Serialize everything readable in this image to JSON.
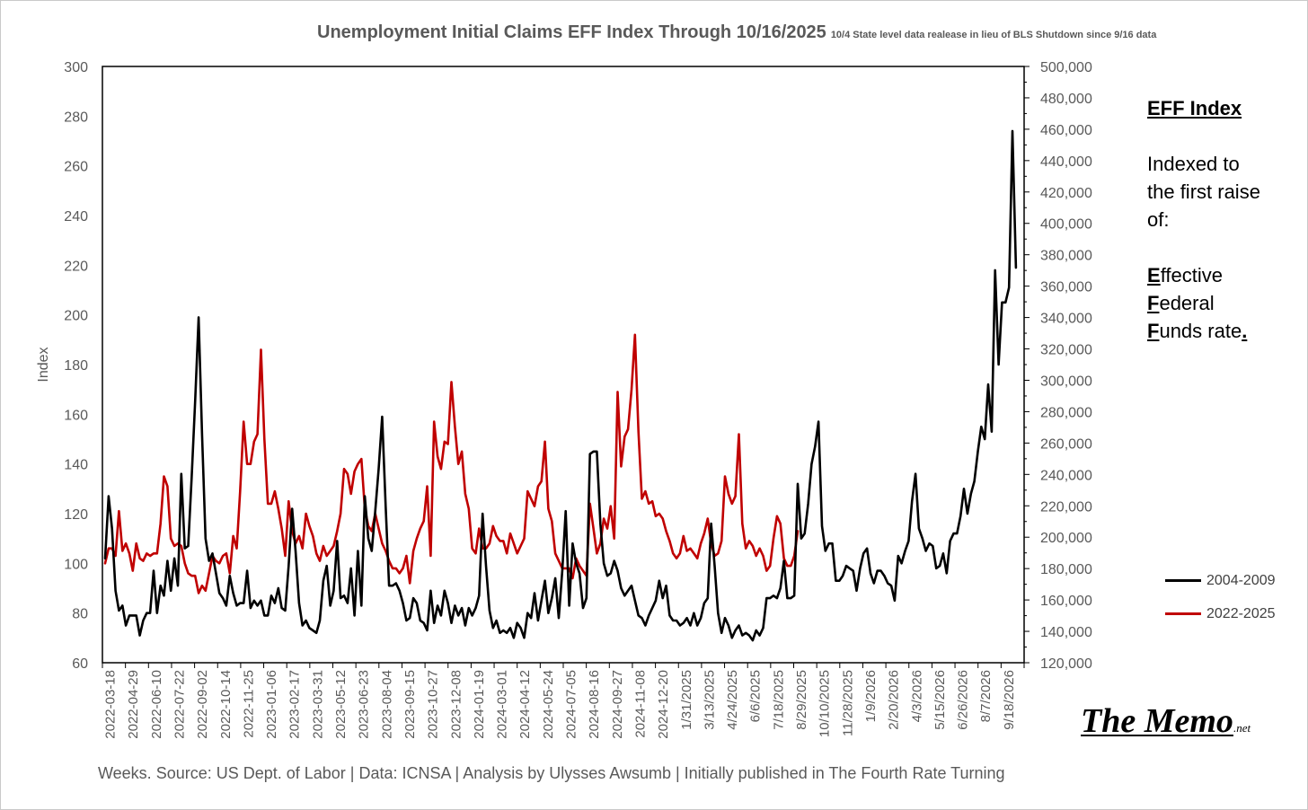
{
  "title": {
    "main": "Unemployment Initial Claims EFF Index Through 10/16/2025",
    "note": "10/4 State level data realease in lieu of BLS Shutdown since 9/16 data"
  },
  "side_panel": {
    "heading": "EFF Index",
    "line1": "Indexed to",
    "line2": "the first raise",
    "line3": "of:",
    "e_letter": "E",
    "e_rest": "ffective",
    "f_letter": "F",
    "f_rest": "ederal",
    "f2_letter": "F",
    "f2_rest": "unds rate",
    "f2_tail": "."
  },
  "footer": "Weeks. Source: US Dept. of Labor | Data: ICNSA | Analysis by Ulysses Awsumb | Initially published in The Fourth Rate Turning",
  "logo": {
    "main": "The Memo",
    "suffix": ".net"
  },
  "colors": {
    "series_2004": "#000000",
    "series_2022": "#c00000",
    "axis": "#000000",
    "text": "#595959"
  },
  "chart_data": {
    "type": "line",
    "title": "Unemployment Initial Claims EFF Index Through 10/16/2025",
    "ylabel": "Index",
    "ylim": [
      60,
      300
    ],
    "y_ticks": [
      60,
      80,
      100,
      120,
      140,
      160,
      180,
      200,
      220,
      240,
      260,
      280,
      300
    ],
    "y2lim": [
      120000,
      500000
    ],
    "y2_ticks": [
      "120,000",
      "140,000",
      "160,000",
      "180,000",
      "200,000",
      "220,000",
      "240,000",
      "260,000",
      "280,000",
      "300,000",
      "320,000",
      "340,000",
      "360,000",
      "380,000",
      "400,000",
      "420,000",
      "440,000",
      "460,000",
      "480,000",
      "500,000"
    ],
    "x_tick_labels": [
      "2022-03-18",
      "2022-04-29",
      "2022-06-10",
      "2022-07-22",
      "2022-09-02",
      "2022-10-14",
      "2022-11-25",
      "2023-01-06",
      "2023-02-17",
      "2023-03-31",
      "2023-05-12",
      "2023-06-23",
      "2023-08-04",
      "2023-09-15",
      "2023-10-27",
      "2023-12-08",
      "2024-01-19",
      "2024-03-01",
      "2024-04-12",
      "2024-05-24",
      "2024-07-05",
      "2024-08-16",
      "2024-09-27",
      "2024-11-08",
      "2024-12-20",
      "1/31/2025",
      "3/13/2025",
      "4/24/2025",
      "6/6/2025",
      "7/18/2025",
      "8/29/2025",
      "10/10/2025",
      "11/28/2025",
      "1/9/2026",
      "2/20/2026",
      "4/3/2026",
      "5/15/2026",
      "6/26/2026",
      "8/7/2026",
      "9/18/2026"
    ],
    "legend_position": "right",
    "series": [
      {
        "name": "2004-2009",
        "color": "#000000",
        "x_week_start": 0,
        "values": [
          102,
          127,
          114,
          89,
          81,
          83,
          75,
          79,
          79,
          79,
          71,
          77,
          80,
          80,
          97,
          80,
          91,
          87,
          101,
          89,
          102,
          91,
          136,
          106,
          107,
          135,
          165,
          199,
          152,
          110,
          101,
          104,
          96,
          88,
          86,
          83,
          95,
          88,
          83,
          84,
          84,
          97,
          82,
          85,
          83,
          85,
          79,
          79,
          87,
          84,
          90,
          82,
          81,
          99,
          122,
          105,
          84,
          75,
          77,
          74,
          73,
          72,
          77,
          93,
          99,
          83,
          89,
          109,
          86,
          87,
          84,
          98,
          79,
          105,
          83,
          127,
          110,
          105,
          121,
          138,
          159,
          123,
          91,
          91,
          92,
          89,
          84,
          77,
          78,
          86,
          84,
          77,
          76,
          73,
          89,
          76,
          83,
          79,
          89,
          84,
          76,
          83,
          79,
          82,
          75,
          82,
          79,
          82,
          87,
          120,
          99,
          81,
          74,
          77,
          72,
          73,
          72,
          74,
          70,
          76,
          74,
          70,
          80,
          78,
          88,
          77,
          85,
          93,
          80,
          86,
          94,
          78,
          97,
          121,
          83,
          108,
          100,
          96,
          82,
          86,
          144,
          145,
          145,
          116,
          100,
          95,
          96,
          101,
          97,
          90,
          87,
          89,
          91,
          85,
          79,
          78,
          75,
          79,
          82,
          85,
          93,
          86,
          91,
          79,
          77,
          77,
          75,
          76,
          78,
          75,
          80,
          75,
          78,
          84,
          86,
          116,
          99,
          80,
          72,
          78,
          75,
          70,
          73,
          75,
          71,
          72,
          71,
          69,
          73,
          71,
          74,
          86,
          86,
          87,
          86,
          90,
          101,
          86,
          86,
          87,
          132,
          110,
          112,
          124,
          140,
          147,
          157,
          115,
          105,
          108,
          108,
          93,
          93,
          95,
          99,
          98,
          97,
          89,
          98,
          104,
          106,
          96,
          92,
          97,
          97,
          95,
          92,
          91,
          85,
          103,
          100,
          105,
          109,
          125,
          136,
          114,
          110,
          105,
          108,
          107,
          98,
          99,
          104,
          96,
          109,
          112,
          112,
          119,
          130,
          120,
          128,
          133,
          145,
          155,
          150,
          172,
          153,
          218,
          180,
          205,
          205,
          211,
          274,
          219
        ]
      },
      {
        "name": "2022-2025",
        "color": "#c00000",
        "x_week_start": 0,
        "values": [
          100,
          106,
          106,
          103,
          121,
          105,
          108,
          104,
          97,
          108,
          102,
          101,
          104,
          103,
          104,
          104,
          116,
          135,
          131,
          110,
          107,
          108,
          107,
          100,
          96,
          95,
          95,
          88,
          91,
          89,
          96,
          103,
          101,
          100,
          103,
          104,
          96,
          111,
          106,
          129,
          157,
          140,
          140,
          149,
          152,
          186,
          150,
          124,
          124,
          129,
          122,
          114,
          103,
          125,
          113,
          108,
          111,
          106,
          120,
          115,
          111,
          104,
          101,
          107,
          103,
          105,
          107,
          113,
          120,
          138,
          136,
          128,
          137,
          140,
          142,
          122,
          115,
          113,
          120,
          114,
          108,
          105,
          101,
          98,
          98,
          96,
          98,
          103,
          92,
          105,
          110,
          114,
          117,
          131,
          103,
          157,
          143,
          138,
          149,
          148,
          173,
          155,
          140,
          145,
          128,
          122,
          106,
          104,
          114,
          106,
          106,
          108,
          115,
          111,
          109,
          109,
          104,
          112,
          108,
          104,
          107,
          110,
          129,
          126,
          123,
          131,
          133,
          149,
          122,
          117,
          104,
          101,
          98,
          98,
          98,
          94,
          102,
          99,
          97,
          95,
          124,
          114,
          104,
          108,
          118,
          114,
          123,
          110,
          169,
          139,
          151,
          154,
          170,
          192,
          153,
          126,
          129,
          124,
          125,
          119,
          120,
          118,
          113,
          109,
          104,
          102,
          104,
          111,
          105,
          106,
          104,
          102,
          108,
          112,
          118,
          108,
          103,
          104,
          109,
          135,
          128,
          124,
          127,
          152,
          116,
          106,
          109,
          107,
          103,
          106,
          103,
          97,
          99,
          110,
          119,
          116,
          102,
          99,
          99,
          103,
          113
        ]
      }
    ]
  }
}
